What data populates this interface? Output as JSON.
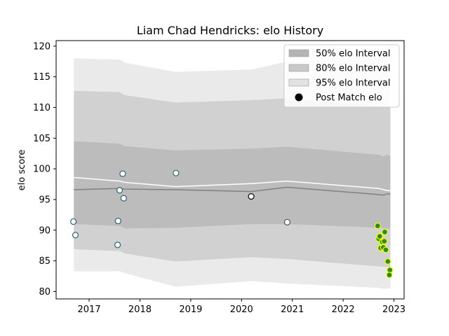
{
  "chart_data": {
    "type": "scatter",
    "title": "Liam Chad Hendricks: elo History",
    "xlabel": "",
    "ylabel": "elo score",
    "xlim": [
      2016.35,
      2023.2
    ],
    "ylim": [
      78.8,
      120.9
    ],
    "xticks": [
      2017,
      2018,
      2019,
      2020,
      2021,
      2022,
      2023
    ],
    "yticks": [
      80,
      85,
      90,
      95,
      100,
      105,
      110,
      115,
      120
    ],
    "grid": false,
    "legend_position": "top-right",
    "legend": [
      {
        "label": "50% elo Interval",
        "kind": "band",
        "color": "#b4b4b4"
      },
      {
        "label": "80% elo Interval",
        "kind": "band",
        "color": "#c8c8c8"
      },
      {
        "label": "95% elo Interval",
        "kind": "band",
        "color": "#e2e2e2"
      },
      {
        "label": "Post Match elo",
        "kind": "marker",
        "color": "#000000"
      }
    ],
    "bands": {
      "x": [
        2016.7,
        2017.6,
        2017.7,
        2018.7,
        2020.2,
        2020.9,
        2022.7,
        2022.8,
        2022.85,
        2022.93
      ],
      "interval_95": {
        "upper": [
          118.0,
          117.8,
          117.3,
          115.8,
          116.2,
          117.5,
          118.0,
          118.5,
          118.3,
          118.0
        ],
        "lower": [
          83.3,
          83.3,
          83.0,
          80.8,
          81.7,
          81.3,
          80.6,
          80.4,
          80.5,
          80.5
        ],
        "color": "#e2e2e2"
      },
      "interval_80": {
        "upper": [
          112.7,
          112.5,
          112.0,
          110.8,
          111.2,
          111.5,
          110.3,
          110.2,
          110.0,
          110.0
        ],
        "lower": [
          86.9,
          86.6,
          86.2,
          84.9,
          85.6,
          85.3,
          84.1,
          84.0,
          84.0,
          84.0
        ],
        "color": "#c8c8c8"
      },
      "interval_50": {
        "upper": [
          104.5,
          104.1,
          103.7,
          103.0,
          103.3,
          103.6,
          102.3,
          102.0,
          102.3,
          102.1
        ],
        "lower": [
          91.0,
          90.7,
          90.3,
          90.4,
          91.0,
          91.0,
          90.4,
          90.3,
          90.3,
          90.2
        ],
        "color": "#b4b4b4"
      }
    },
    "series": [
      {
        "x": [
          2016.7,
          2017.6,
          2017.7,
          2018.7,
          2020.2,
          2020.9,
          2022.7,
          2022.8,
          2022.85,
          2022.93
        ],
        "values": [
          96.6,
          96.8,
          96.7,
          96.6,
          96.3,
          97.0,
          95.8,
          95.7,
          95.9,
          95.9
        ],
        "color": "#808080",
        "width": 1.5
      },
      {
        "x": [
          2016.7,
          2017.6,
          2017.7,
          2018.7,
          2020.2,
          2020.9,
          2022.7,
          2022.8,
          2022.85,
          2022.93
        ],
        "values": [
          98.6,
          98.0,
          97.8,
          97.1,
          97.6,
          98.0,
          96.8,
          96.6,
          96.5,
          96.4
        ],
        "color": "#ffffff",
        "width": 1.5
      }
    ],
    "points": [
      {
        "x": 2016.69,
        "y": 91.4,
        "fill": "#ffffff",
        "stroke": "#2f5f6f"
      },
      {
        "x": 2016.73,
        "y": 89.2,
        "fill": "#ffffff",
        "stroke": "#2f5f6f"
      },
      {
        "x": 2017.57,
        "y": 91.5,
        "fill": "#ffffff",
        "stroke": "#2f5f6f"
      },
      {
        "x": 2017.56,
        "y": 87.6,
        "fill": "#ffffff",
        "stroke": "#2f5f6f"
      },
      {
        "x": 2017.6,
        "y": 96.5,
        "fill": "#ffffff",
        "stroke": "#2f5f6f"
      },
      {
        "x": 2017.66,
        "y": 99.2,
        "fill": "#ffffff",
        "stroke": "#2f5f6f"
      },
      {
        "x": 2017.68,
        "y": 95.2,
        "fill": "#ffffff",
        "stroke": "#2f5f6f"
      },
      {
        "x": 2018.71,
        "y": 99.3,
        "fill": "#ffffff",
        "stroke": "#2f5f6f"
      },
      {
        "x": 2020.19,
        "y": 95.5,
        "fill": "#ffffff",
        "stroke": "#000000"
      },
      {
        "x": 2020.9,
        "y": 91.3,
        "fill": "#ffffff",
        "stroke": "#555555"
      },
      {
        "x": 2022.68,
        "y": 90.7,
        "fill": "#2e8b2e",
        "stroke": "#ffff00"
      },
      {
        "x": 2022.7,
        "y": 88.6,
        "fill": "#2e8b2e",
        "stroke": "#ffff00"
      },
      {
        "x": 2022.72,
        "y": 89.0,
        "fill": "#2e8b2e",
        "stroke": "#ffff00"
      },
      {
        "x": 2022.74,
        "y": 87.1,
        "fill": "#2e8b2e",
        "stroke": "#ffff00"
      },
      {
        "x": 2022.77,
        "y": 88.1,
        "fill": "#2e8b2e",
        "stroke": "#ffff00"
      },
      {
        "x": 2022.79,
        "y": 87.2,
        "fill": "#2e8b2e",
        "stroke": "#ffff00"
      },
      {
        "x": 2022.81,
        "y": 88.2,
        "fill": "#2e8b2e",
        "stroke": "#ffff00"
      },
      {
        "x": 2022.82,
        "y": 89.7,
        "fill": "#2e8b2e",
        "stroke": "#ffff00"
      },
      {
        "x": 2022.84,
        "y": 86.8,
        "fill": "#2e8b2e",
        "stroke": "#ffff00"
      },
      {
        "x": 2022.88,
        "y": 84.9,
        "fill": "#2e8b2e",
        "stroke": "#ffff00"
      },
      {
        "x": 2022.92,
        "y": 83.5,
        "fill": "#2e8b2e",
        "stroke": "#ffff00"
      },
      {
        "x": 2022.91,
        "y": 82.7,
        "fill": "#2e8b2e",
        "stroke": "#ffff00"
      }
    ]
  }
}
